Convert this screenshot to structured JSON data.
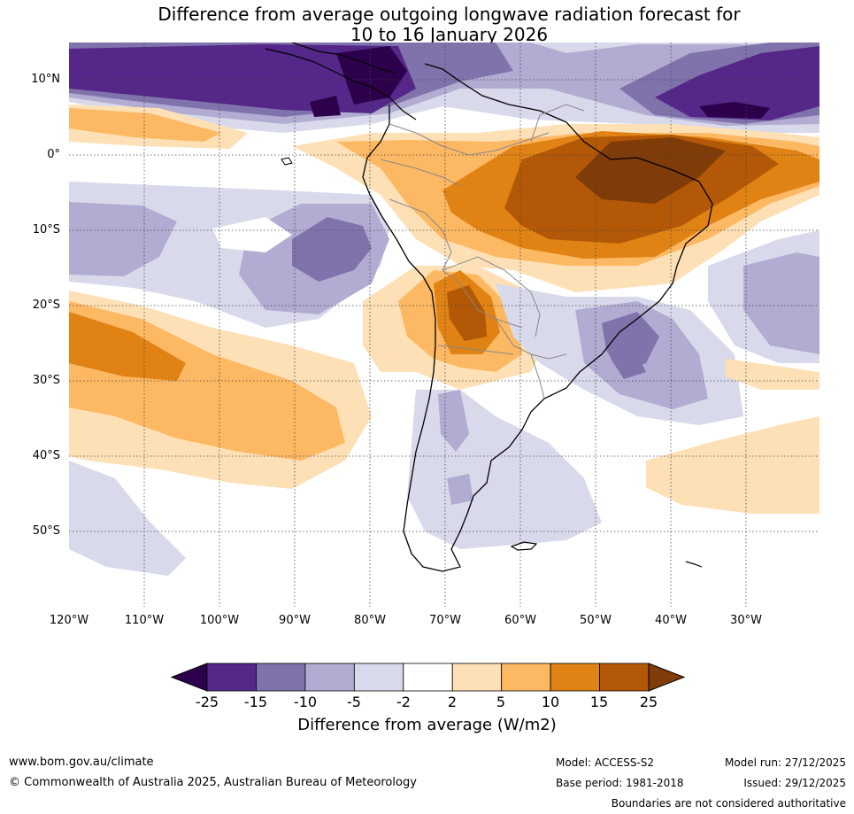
{
  "title": {
    "line1": "Difference from average outgoing longwave radiation forecast for",
    "line2": "10 to 16 January 2026"
  },
  "map": {
    "lat_labels": [
      "10°N",
      "0°",
      "10°S",
      "20°S",
      "30°S",
      "40°S",
      "50°S"
    ],
    "lon_labels": [
      "120°W",
      "110°W",
      "100°W",
      "90°W",
      "80°W",
      "70°W",
      "60°W",
      "50°W",
      "40°W",
      "30°W"
    ]
  },
  "colorbar": {
    "ticks": [
      "-25",
      "-15",
      "-10",
      "-5",
      "-2",
      "2",
      "5",
      "10",
      "15",
      "25"
    ],
    "colors": [
      "#2d004b",
      "#542788",
      "#8073ac",
      "#b2abd2",
      "#d8daeb",
      "#ffffff",
      "#fee0b6",
      "#fdb863",
      "#e08214",
      "#b35806",
      "#7f3b08"
    ],
    "title": "Difference from average (W/m2)"
  },
  "footer": {
    "website": "www.bom.gov.au/climate",
    "copyright": "© Commonwealth of Australia 2025, Australian Bureau of Meteorology",
    "model": "Model: ACCESS-S2",
    "base_period": "Base period: 1981-2018",
    "model_run": "Model run: 27/12/2025",
    "issued": "Issued: 29/12/2025",
    "disclaimer": "Boundaries are not considered authoritative"
  }
}
